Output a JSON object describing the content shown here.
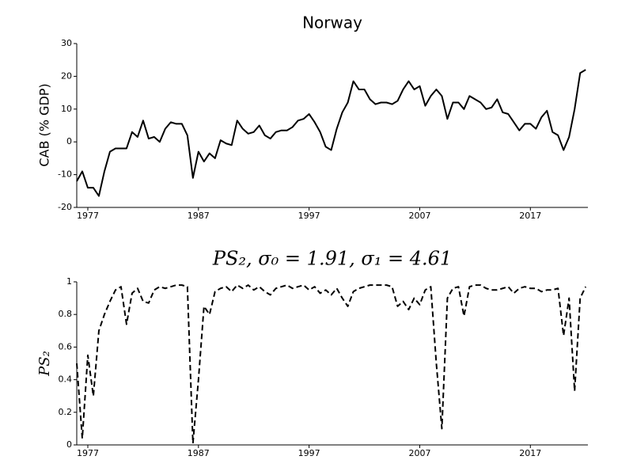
{
  "chart_data": [
    {
      "type": "line",
      "title": "Norway",
      "ylabel": "CAB (% GDP)",
      "x": [
        1976,
        1976.5,
        1977,
        1977.5,
        1978,
        1978.5,
        1979,
        1979.5,
        1980,
        1980.5,
        1981,
        1981.5,
        1982,
        1982.5,
        1983,
        1983.5,
        1984,
        1984.5,
        1985,
        1985.5,
        1986,
        1986.5,
        1987,
        1987.5,
        1988,
        1988.5,
        1989,
        1989.5,
        1990,
        1990.5,
        1991,
        1991.5,
        1992,
        1992.5,
        1993,
        1993.5,
        1994,
        1994.5,
        1995,
        1995.5,
        1996,
        1996.5,
        1997,
        1997.5,
        1998,
        1998.5,
        1999,
        1999.5,
        2000,
        2000.5,
        2001,
        2001.5,
        2002,
        2002.5,
        2003,
        2003.5,
        2004,
        2004.5,
        2005,
        2005.5,
        2006,
        2006.5,
        2007,
        2007.5,
        2008,
        2008.5,
        2009,
        2009.5,
        2010,
        2010.5,
        2011,
        2011.5,
        2012,
        2012.5,
        2013,
        2013.5,
        2014,
        2014.5,
        2015,
        2015.5,
        2016,
        2016.5,
        2017,
        2017.5,
        2018,
        2018.5,
        2019,
        2019.5,
        2020,
        2020.5,
        2021,
        2021.5,
        2022
      ],
      "values": [
        -12,
        -9,
        -14,
        -14,
        -16.5,
        -9,
        -3,
        -2,
        -2,
        -2,
        3,
        1.5,
        6.5,
        1,
        1.5,
        0,
        4,
        6,
        5.5,
        5.5,
        2,
        -11,
        -3,
        -6,
        -3.5,
        -5,
        0.5,
        -0.5,
        -1,
        6.5,
        4,
        2.5,
        3,
        5,
        2,
        1,
        3,
        3.5,
        3.5,
        4.5,
        6.5,
        7,
        8.5,
        6,
        3,
        -1.5,
        -2.5,
        4,
        9,
        12,
        18.5,
        16,
        16,
        13,
        11.5,
        12,
        12,
        11.5,
        12.5,
        16,
        18.5,
        16,
        17,
        11,
        14,
        16,
        14,
        7,
        12,
        12,
        10,
        14,
        13,
        12,
        10,
        10.5,
        13,
        9,
        8.5,
        6,
        3.5,
        5.5,
        5.5,
        4,
        7.5,
        9.5,
        3,
        2,
        -2.5,
        1.5,
        10,
        21,
        22
      ],
      "color": "#000000",
      "line_style": "solid",
      "xlim": [
        1976,
        2022.2
      ],
      "xticks": [
        1977,
        1987,
        1997,
        2007,
        2017
      ],
      "ylim": [
        -20,
        30
      ],
      "yticks": [
        -20,
        -10,
        0,
        10,
        20,
        30
      ]
    },
    {
      "type": "line",
      "title": "PS₂, σ₀ = 1.91, σ₁ = 4.61",
      "ylabel": "PS₂",
      "x": [
        1976,
        1976.5,
        1977,
        1977.5,
        1978,
        1978.5,
        1979,
        1979.5,
        1980,
        1980.5,
        1981,
        1981.5,
        1982,
        1982.5,
        1983,
        1983.5,
        1984,
        1984.5,
        1985,
        1985.5,
        1986,
        1986.5,
        1987,
        1987.5,
        1988,
        1988.5,
        1989,
        1989.5,
        1990,
        1990.5,
        1991,
        1991.5,
        1992,
        1992.5,
        1993,
        1993.5,
        1994,
        1994.5,
        1995,
        1995.5,
        1996,
        1996.5,
        1997,
        1997.5,
        1998,
        1998.5,
        1999,
        1999.5,
        2000,
        2000.5,
        2001,
        2001.5,
        2002,
        2002.5,
        2003,
        2003.5,
        2004,
        2004.5,
        2005,
        2005.5,
        2006,
        2006.5,
        2007,
        2007.5,
        2008,
        2008.5,
        2009,
        2009.5,
        2010,
        2010.5,
        2011,
        2011.5,
        2012,
        2012.5,
        2013,
        2013.5,
        2014,
        2014.5,
        2015,
        2015.5,
        2016,
        2016.5,
        2017,
        2017.5,
        2018,
        2018.5,
        2019,
        2019.5,
        2020,
        2020.5,
        2021,
        2021.5,
        2022
      ],
      "values": [
        0.5,
        0.04,
        0.55,
        0.3,
        0.7,
        0.8,
        0.88,
        0.95,
        0.97,
        0.74,
        0.93,
        0.96,
        0.88,
        0.87,
        0.95,
        0.97,
        0.96,
        0.97,
        0.98,
        0.98,
        0.97,
        0.01,
        0.4,
        0.85,
        0.8,
        0.94,
        0.96,
        0.97,
        0.94,
        0.98,
        0.96,
        0.98,
        0.95,
        0.97,
        0.94,
        0.92,
        0.96,
        0.97,
        0.98,
        0.96,
        0.97,
        0.98,
        0.95,
        0.97,
        0.93,
        0.95,
        0.92,
        0.96,
        0.9,
        0.85,
        0.94,
        0.96,
        0.97,
        0.98,
        0.98,
        0.98,
        0.98,
        0.97,
        0.85,
        0.88,
        0.83,
        0.9,
        0.86,
        0.95,
        0.97,
        0.5,
        0.1,
        0.9,
        0.96,
        0.97,
        0.79,
        0.97,
        0.98,
        0.98,
        0.96,
        0.95,
        0.95,
        0.96,
        0.97,
        0.93,
        0.96,
        0.97,
        0.96,
        0.96,
        0.94,
        0.95,
        0.95,
        0.96,
        0.67,
        0.9,
        0.33,
        0.9,
        0.97
      ],
      "color": "#000000",
      "line_style": "dashed",
      "xlim": [
        1976,
        2022.2
      ],
      "xticks": [
        1977,
        1987,
        1997,
        2007,
        2017
      ],
      "ylim": [
        0,
        1
      ],
      "yticks": [
        0,
        0.2,
        0.4,
        0.6,
        0.8,
        1
      ]
    }
  ]
}
